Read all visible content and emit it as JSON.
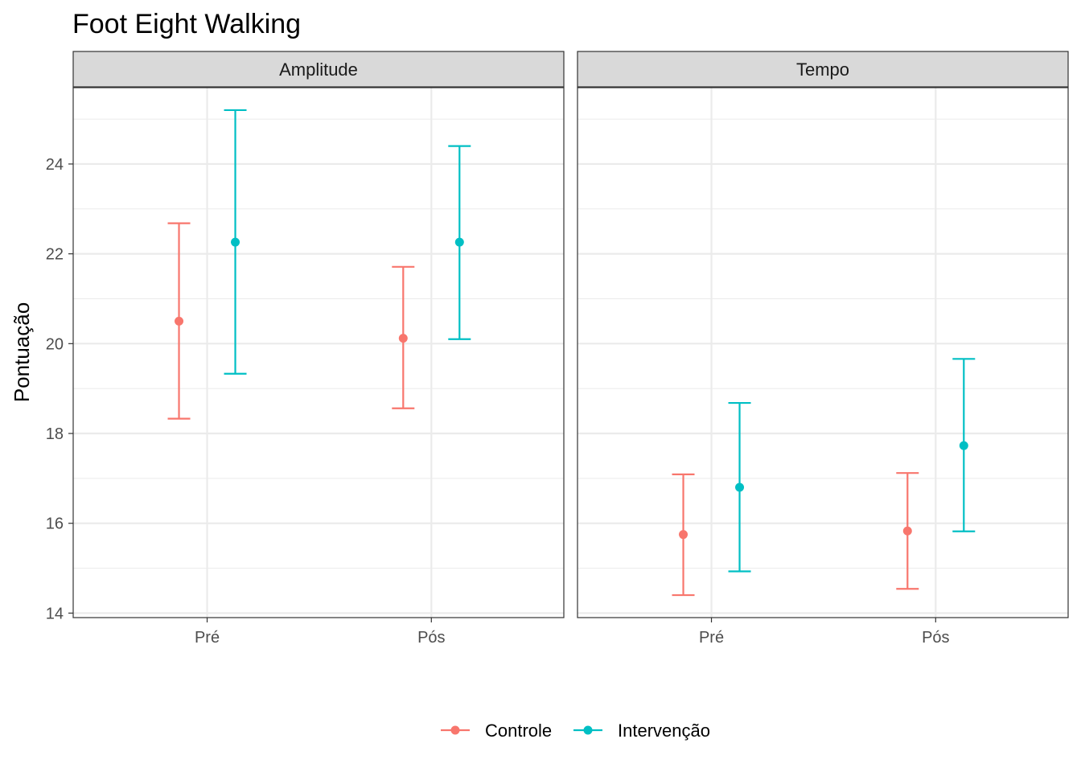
{
  "chart_data": {
    "type": "errorbar",
    "title": "Foot Eight Walking",
    "ylabel": "Pontuação",
    "xlabel": "",
    "categories": [
      "Pré",
      "Pós"
    ],
    "ylim": [
      13.9,
      25.7
    ],
    "yticks": [
      14,
      16,
      18,
      20,
      22,
      24
    ],
    "grid": true,
    "legend_position": "bottom",
    "series_colors": {
      "Controle": "#f8766d",
      "Intervenção": "#00bfc4"
    },
    "legend": [
      "Controle",
      "Intervenção"
    ],
    "panels": [
      {
        "name": "Amplitude",
        "series": [
          {
            "name": "Controle",
            "mean": [
              20.5,
              20.12
            ],
            "lower": [
              18.33,
              18.56
            ],
            "upper": [
              22.68,
              21.71
            ]
          },
          {
            "name": "Intervenção",
            "mean": [
              22.26,
              22.26
            ],
            "lower": [
              19.33,
              20.1
            ],
            "upper": [
              25.2,
              24.4
            ]
          }
        ]
      },
      {
        "name": "Tempo",
        "series": [
          {
            "name": "Controle",
            "mean": [
              15.75,
              15.83
            ],
            "lower": [
              14.4,
              14.54
            ],
            "upper": [
              17.09,
              17.12
            ]
          },
          {
            "name": "Intervenção",
            "mean": [
              16.8,
              17.73
            ],
            "lower": [
              14.93,
              15.82
            ],
            "upper": [
              18.68,
              19.66
            ]
          }
        ]
      }
    ]
  }
}
